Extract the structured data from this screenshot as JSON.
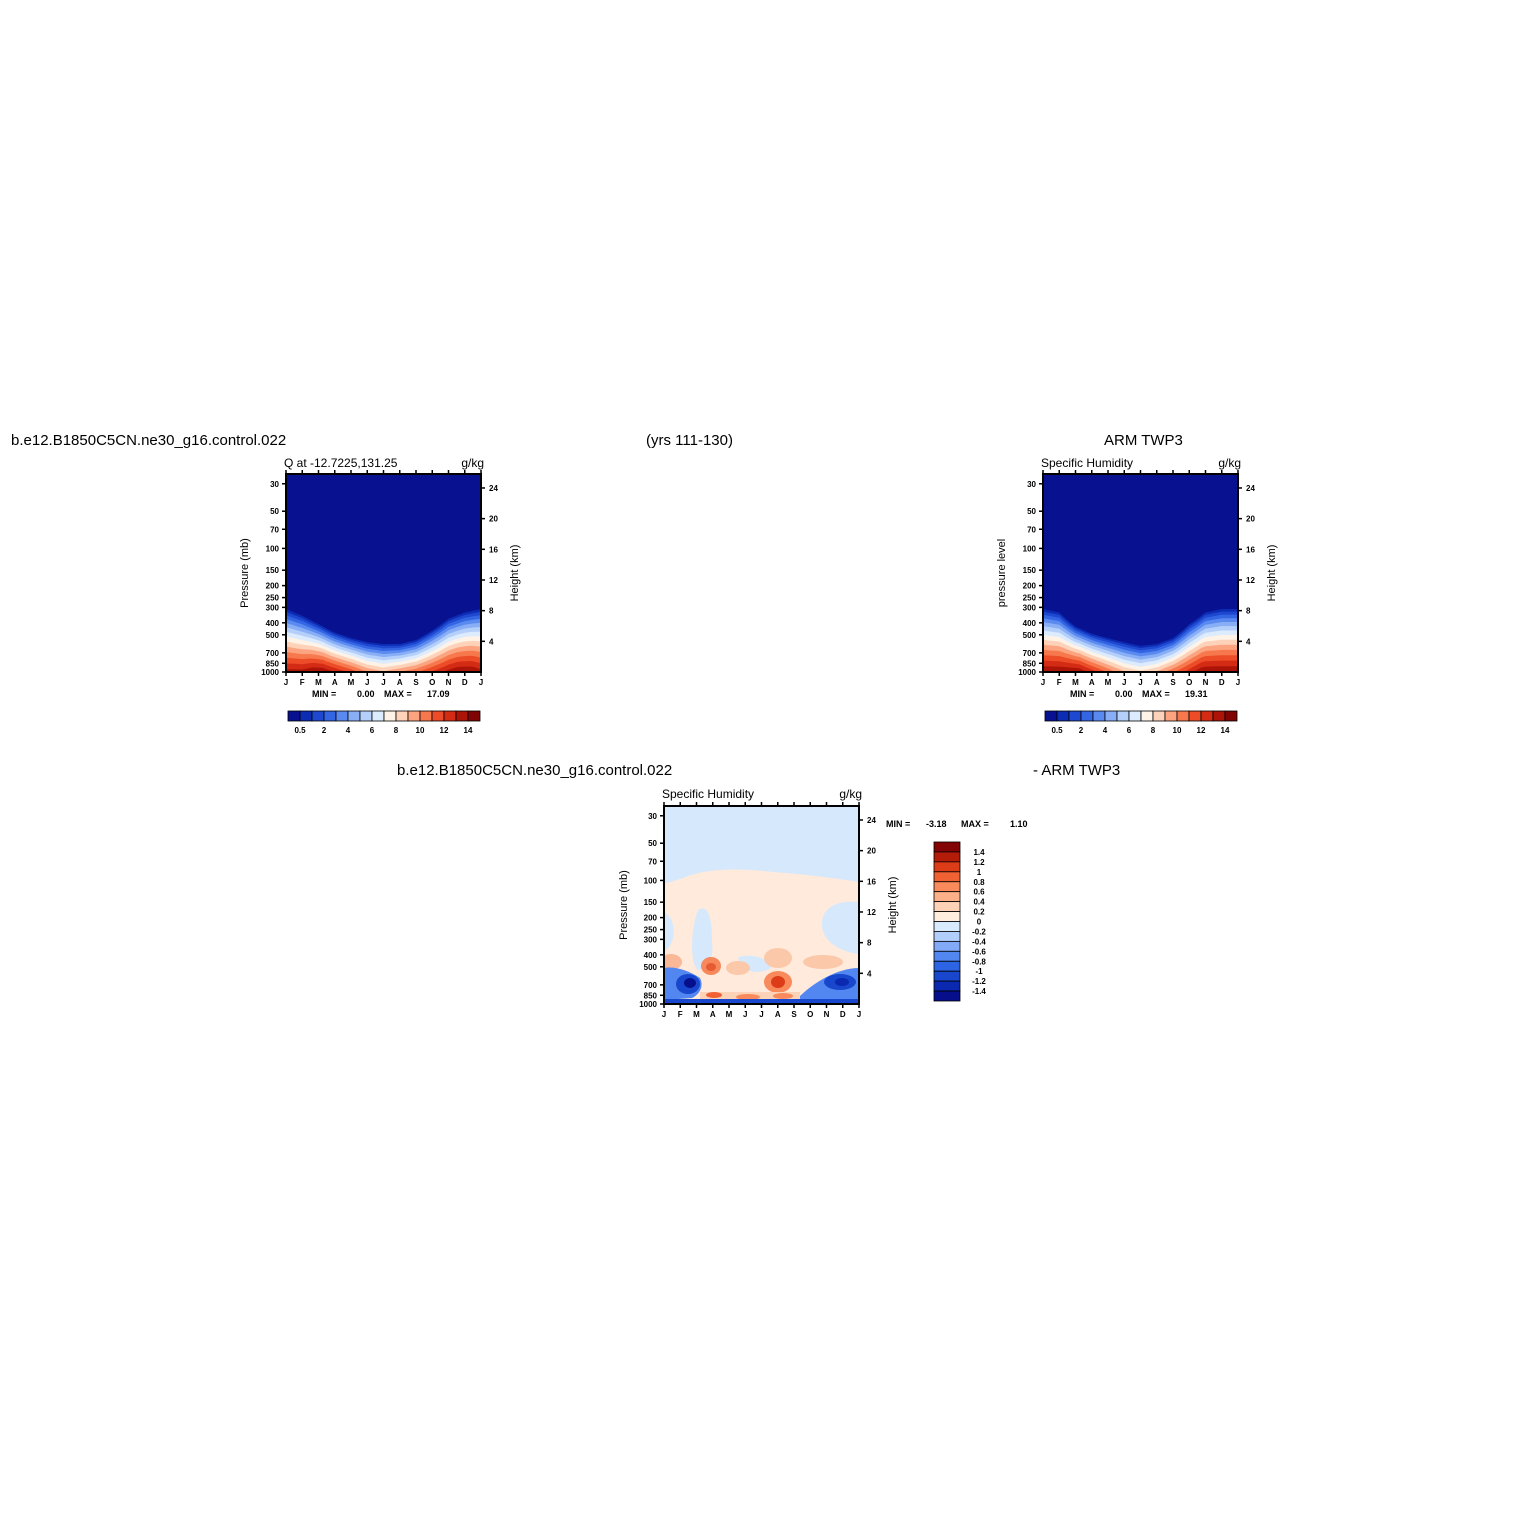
{
  "header": {
    "case_left": "b.e12.B1850C5CN.ne30_g16.control.022",
    "years": "(yrs 111-130)",
    "obs_right": "ARM TWP3",
    "diff_left": "b.e12.B1850C5CN.ne30_g16.control.022",
    "diff_right": "- ARM TWP3"
  },
  "colors": {
    "background": "#ffffff",
    "abs_scale": [
      "#081290",
      "#0c2cb4",
      "#1f48d0",
      "#3466e4",
      "#5a8af0",
      "#88aef6",
      "#b4d0fa",
      "#dcebfd",
      "#fff2e6",
      "#fed2b8",
      "#fca480",
      "#f8784e",
      "#ec4c28",
      "#d42c14",
      "#ac1408",
      "#800404"
    ],
    "diff_scale": [
      "#060e8c",
      "#0a28b0",
      "#1846cc",
      "#2c64e4",
      "#5286f0",
      "#82aaf6",
      "#b2cefa",
      "#d8eafd",
      "#ffeedd",
      "#fed2b6",
      "#fcb08a",
      "#f88a5c",
      "#f06234",
      "#dc3c18",
      "#b41c0a",
      "#820404"
    ]
  },
  "chart_data": [
    {
      "id": "model",
      "type": "heatmap",
      "title": "Q at -12.7225,131.25",
      "units": "g/kg",
      "ylabel": "Pressure (mb)",
      "ylabel_right": "Height (km)",
      "x_ticks": [
        "J",
        "F",
        "M",
        "A",
        "M",
        "J",
        "J",
        "A",
        "S",
        "O",
        "N",
        "D",
        "J"
      ],
      "y_ticks": [
        "30",
        "50",
        "70",
        "100",
        "150",
        "200",
        "250",
        "300",
        "400",
        "500",
        "700",
        "850",
        "1000"
      ],
      "y_ticks_right": [
        "24",
        "20",
        "16",
        "12",
        "8",
        "4"
      ],
      "ylim_pressure": [
        1000,
        25
      ],
      "stats": {
        "min_label": "MIN =",
        "min": "0.00",
        "max_label": "MAX =",
        "max": "17.09"
      },
      "colorbar_labels": [
        "0.5",
        "2",
        "4",
        "6",
        "8",
        "10",
        "12",
        "14"
      ],
      "moist_top_pressure": [
        300,
        340,
        400,
        470,
        520,
        560,
        580,
        580,
        540,
        450,
        360,
        320,
        300
      ],
      "surface_max": [
        16,
        16,
        17,
        15.5,
        14,
        12,
        11,
        12,
        13,
        14.5,
        16,
        17.09,
        16
      ]
    },
    {
      "id": "obs",
      "type": "heatmap",
      "title": "Specific Humidity",
      "units": "g/kg",
      "ylabel": "pressure level",
      "ylabel_right": "Height (km)",
      "x_ticks": [
        "J",
        "F",
        "M",
        "A",
        "M",
        "J",
        "J",
        "A",
        "S",
        "O",
        "N",
        "D",
        "J"
      ],
      "y_ticks": [
        "30",
        "50",
        "70",
        "100",
        "150",
        "200",
        "250",
        "300",
        "400",
        "500",
        "700",
        "850",
        "1000"
      ],
      "y_ticks_right": [
        "24",
        "20",
        "16",
        "12",
        "8",
        "4"
      ],
      "ylim_pressure": [
        1000,
        25
      ],
      "stats": {
        "min_label": "MIN =",
        "min": "0.00",
        "max_label": "MAX =",
        "max": "19.31"
      },
      "colorbar_labels": [
        "0.5",
        "2",
        "4",
        "6",
        "8",
        "10",
        "12",
        "14"
      ],
      "moist_top_pressure": [
        300,
        320,
        420,
        480,
        520,
        560,
        600,
        580,
        520,
        400,
        320,
        300,
        300
      ],
      "surface_max": [
        19,
        18,
        17,
        15,
        13,
        11,
        10,
        11,
        13,
        15,
        17,
        19.31,
        19
      ]
    },
    {
      "id": "diff",
      "type": "heatmap",
      "title": "Specific Humidity",
      "units": "g/kg",
      "ylabel": "Pressure (mb)",
      "ylabel_right": "Height (km)",
      "x_ticks": [
        "J",
        "F",
        "M",
        "A",
        "M",
        "J",
        "J",
        "A",
        "S",
        "O",
        "N",
        "D",
        "J"
      ],
      "y_ticks": [
        "30",
        "50",
        "70",
        "100",
        "150",
        "200",
        "250",
        "300",
        "400",
        "500",
        "700",
        "850",
        "1000"
      ],
      "y_ticks_right": [
        "24",
        "20",
        "16",
        "12",
        "8",
        "4"
      ],
      "ylim_pressure": [
        1000,
        25
      ],
      "stats": {
        "min_label": "MIN =",
        "min": "-3.18",
        "max_label": "MAX =",
        "max": "1.10"
      },
      "colorbar_labels": [
        "1.4",
        "1.2",
        "1",
        "0.8",
        "0.6",
        "0.4",
        "0.2",
        "0",
        "-0.2",
        "-0.4",
        "-0.6",
        "-0.8",
        "-1",
        "-1.2",
        "-1.4"
      ]
    }
  ]
}
